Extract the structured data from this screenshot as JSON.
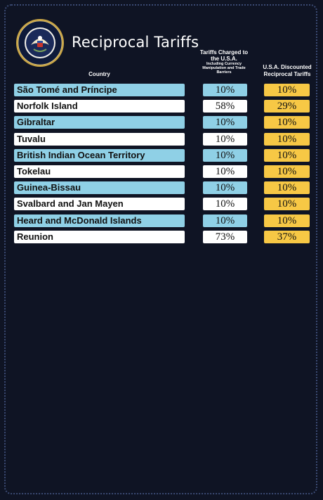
{
  "title": "Reciprocal Tariffs",
  "seal_text": "SEAL OF THE PRESIDENT OF THE UNITED STATES",
  "headers": {
    "country": "Country",
    "charged_main": "Tariffs Charged to the U.S.A.",
    "charged_sub": "Including Currency Manipulation and Trade Barriers",
    "discounted": "U.S.A. Discounted Reciprocal Tariffs"
  },
  "colors": {
    "background": "#0f1424",
    "row_blue": "#8fd0e6",
    "row_white": "#ffffff",
    "discount_yellow": "#f7c845"
  },
  "rows": [
    {
      "country": "São Tomé and Príncipe",
      "charged": "10%",
      "discounted": "10%"
    },
    {
      "country": "Norfolk Island",
      "charged": "58%",
      "discounted": "29%"
    },
    {
      "country": "Gibraltar",
      "charged": "10%",
      "discounted": "10%"
    },
    {
      "country": "Tuvalu",
      "charged": "10%",
      "discounted": "10%"
    },
    {
      "country": "British Indian Ocean Territory",
      "charged": "10%",
      "discounted": "10%"
    },
    {
      "country": "Tokelau",
      "charged": "10%",
      "discounted": "10%"
    },
    {
      "country": "Guinea-Bissau",
      "charged": "10%",
      "discounted": "10%"
    },
    {
      "country": "Svalbard and Jan Mayen",
      "charged": "10%",
      "discounted": "10%"
    },
    {
      "country": "Heard and McDonald Islands",
      "charged": "10%",
      "discounted": "10%"
    },
    {
      "country": "Reunion",
      "charged": "73%",
      "discounted": "37%"
    }
  ]
}
